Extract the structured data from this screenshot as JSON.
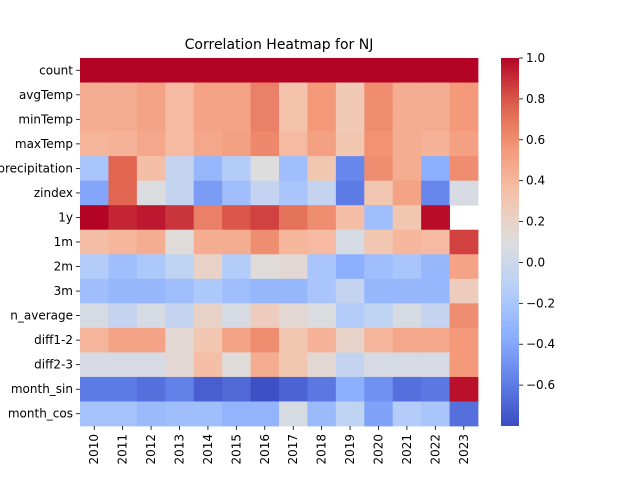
{
  "chart_data": {
    "type": "heatmap",
    "title": "Correlation Heatmap for NJ",
    "xlabel": "",
    "ylabel": "",
    "rows": [
      "count",
      "avgTemp",
      "minTemp",
      "maxTemp",
      "precipitation",
      "zindex",
      "1y",
      "1m",
      "2m",
      "3m",
      "n_average",
      "diff1-2",
      "diff2-3",
      "month_sin",
      "month_cos"
    ],
    "columns": [
      "2010",
      "2011",
      "2012",
      "2013",
      "2014",
      "2015",
      "2016",
      "2017",
      "2018",
      "2019",
      "2020",
      "2021",
      "2022",
      "2023"
    ],
    "values": [
      [
        1.0,
        1.0,
        1.0,
        1.0,
        1.0,
        1.0,
        1.0,
        1.0,
        1.0,
        1.0,
        1.0,
        1.0,
        1.0,
        1.0
      ],
      [
        0.45,
        0.45,
        0.5,
        0.38,
        0.5,
        0.5,
        0.65,
        0.33,
        0.55,
        0.28,
        0.6,
        0.45,
        0.45,
        0.55
      ],
      [
        0.45,
        0.45,
        0.5,
        0.38,
        0.5,
        0.5,
        0.65,
        0.33,
        0.55,
        0.28,
        0.6,
        0.45,
        0.45,
        0.55
      ],
      [
        0.4,
        0.42,
        0.48,
        0.38,
        0.48,
        0.52,
        0.62,
        0.38,
        0.52,
        0.3,
        0.58,
        0.45,
        0.42,
        0.52
      ],
      [
        -0.2,
        0.75,
        0.35,
        -0.05,
        -0.3,
        -0.15,
        0.1,
        -0.25,
        0.3,
        -0.55,
        0.6,
        0.45,
        -0.35,
        0.6
      ],
      [
        -0.4,
        0.75,
        0.08,
        -0.05,
        -0.45,
        -0.25,
        -0.05,
        -0.2,
        -0.05,
        -0.6,
        0.3,
        0.5,
        -0.55,
        0.05
      ],
      [
        1.0,
        0.92,
        0.95,
        0.88,
        0.65,
        0.8,
        0.85,
        0.7,
        0.6,
        0.35,
        -0.25,
        0.3,
        0.98,
        null
      ],
      [
        0.35,
        0.4,
        0.45,
        0.12,
        0.45,
        0.45,
        0.6,
        0.4,
        0.38,
        0.05,
        0.3,
        0.4,
        0.38,
        0.85
      ],
      [
        -0.15,
        -0.25,
        -0.18,
        -0.08,
        0.2,
        -0.15,
        0.12,
        0.15,
        -0.2,
        -0.35,
        -0.25,
        -0.2,
        -0.3,
        0.5
      ],
      [
        -0.25,
        -0.3,
        -0.3,
        -0.25,
        -0.18,
        -0.25,
        -0.3,
        -0.3,
        -0.2,
        -0.05,
        -0.3,
        -0.3,
        -0.3,
        0.25
      ],
      [
        0.05,
        -0.05,
        0.05,
        -0.05,
        0.2,
        0.05,
        0.25,
        0.15,
        0.08,
        -0.15,
        -0.08,
        0.05,
        -0.05,
        0.6
      ],
      [
        0.4,
        0.5,
        0.5,
        0.15,
        0.3,
        0.5,
        0.6,
        0.3,
        0.42,
        0.2,
        0.4,
        0.48,
        0.48,
        0.55
      ],
      [
        0.05,
        0.05,
        0.05,
        0.15,
        0.35,
        0.12,
        0.45,
        0.3,
        0.15,
        -0.05,
        0.05,
        0.05,
        0.05,
        0.55
      ],
      [
        -0.6,
        -0.6,
        -0.65,
        -0.58,
        -0.72,
        -0.68,
        -0.78,
        -0.7,
        -0.62,
        -0.35,
        -0.5,
        -0.65,
        -0.62,
        0.97
      ],
      [
        -0.22,
        -0.22,
        -0.28,
        -0.25,
        -0.25,
        -0.32,
        -0.32,
        0.05,
        -0.28,
        -0.08,
        -0.42,
        -0.15,
        -0.2,
        -0.65
      ]
    ],
    "colormap": "coolwarm",
    "vmin": -0.8,
    "vmax": 1.0,
    "colorbar_ticks": [
      "1.0",
      "0.8",
      "0.6",
      "0.4",
      "0.2",
      "0.0",
      "−0.2",
      "−0.4",
      "−0.6"
    ],
    "grid": false
  }
}
